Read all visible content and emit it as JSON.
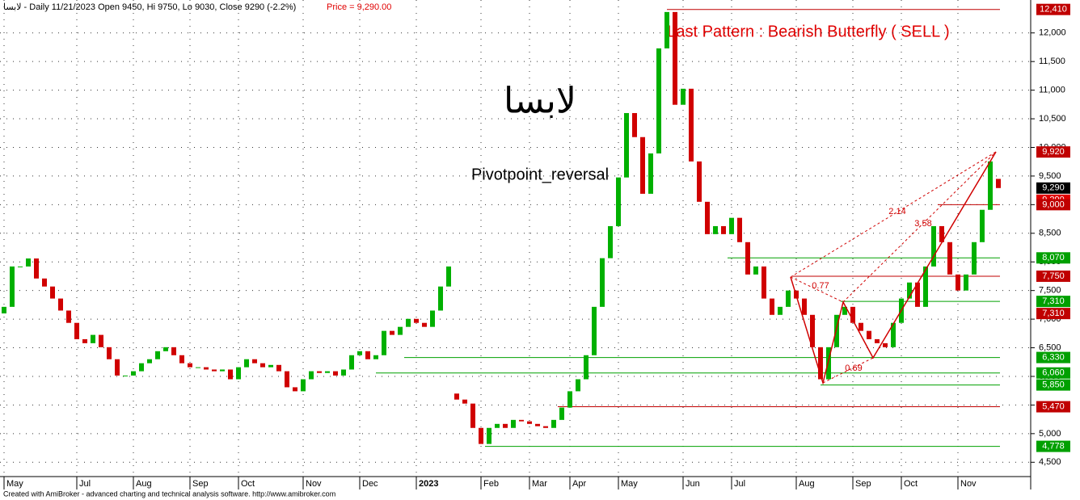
{
  "chart_data": {
    "type": "candlestick",
    "header": "لابسا - Daily 11/21/2023 Open 9450, Hi 9750, Lo 9030, Close 9290 (-2.2%)",
    "header_price": "Price = 9,290.00",
    "title": "لابسا",
    "subtitle": "Pivotpoint_reversal",
    "pattern_label": "Last Pattern : Bearish Butterfly ( SELL )",
    "footer": "Created with AmiBroker - advanced charting and technical analysis software. http://www.amibroker.com",
    "annotations": [
      "2.14",
      "3.58",
      "0.77",
      "0.69"
    ],
    "categories": [
      "May",
      null,
      null,
      null,
      null,
      null,
      null,
      null,
      null,
      "Jul",
      null,
      null,
      null,
      null,
      null,
      null,
      "Aug",
      null,
      null,
      null,
      null,
      null,
      null,
      "Sep",
      null,
      null,
      null,
      null,
      null,
      "Oct",
      null,
      null,
      null,
      null,
      null,
      null,
      null,
      "Nov",
      null,
      null,
      null,
      null,
      null,
      null,
      "Dec",
      null,
      null,
      null,
      null,
      null,
      null,
      "2023",
      null,
      null,
      null,
      null,
      null,
      null,
      null,
      "Feb",
      null,
      null,
      null,
      null,
      null,
      "Mar",
      null,
      null,
      null,
      null,
      "Apr",
      null,
      null,
      null,
      null,
      null,
      "May",
      null,
      null,
      null,
      null,
      null,
      null,
      null,
      "Jun",
      null,
      null,
      null,
      null,
      null,
      "Jul",
      null,
      null,
      null,
      null,
      null,
      null,
      null,
      "Aug",
      null,
      null,
      null,
      null,
      null,
      null,
      "Sep",
      null,
      null,
      null,
      null,
      null,
      "Oct",
      null,
      null,
      null,
      null,
      null,
      null,
      "Nov",
      null,
      null,
      null,
      null,
      null
    ],
    "open": [
      7100,
      7215,
      7920,
      7920,
      8060,
      7710,
      7570,
      7360,
      7150,
      6935,
      6650,
      6580,
      6725,
      6510,
      6300,
      6015,
      6015,
      6090,
      6230,
      6300,
      6440,
      6510,
      6370,
      6230,
      6160,
      6160,
      6120,
      6090,
      6120,
      5950,
      6160,
      6300,
      6230,
      6160,
      6200,
      6090,
      5810,
      5740,
      5950,
      6090,
      6060,
      6090,
      6015,
      6120,
      6370,
      6440,
      6300,
      6370,
      6795,
      6725,
      6865,
      7005,
      6935,
      6865,
      7150,
      7570,
      5700,
      5595,
      5525,
      5100,
      4820,
      5100,
      5170,
      5100,
      5240,
      5215,
      5170,
      5130,
      5100,
      5240,
      5455,
      5740,
      5950,
      6370,
      7215,
      8065,
      8625,
      9475,
      10600,
      10180,
      9190,
      9895,
      11730,
      12365,
      10745,
      11025,
      9755,
      9050,
      8485,
      8625,
      8485,
      8770,
      8345,
      7780,
      7920,
      7360,
      7075,
      7215,
      7500,
      7360,
      7075,
      6510,
      5950,
      6510,
      7075,
      7215,
      6935,
      6795,
      6650,
      6580,
      6510,
      6935,
      7360,
      7640,
      7215,
      7920,
      8625,
      8345,
      7780,
      7500,
      7780,
      8345,
      8910,
      9450
    ],
    "close": [
      7215,
      7920,
      7920,
      8060,
      7710,
      7570,
      7360,
      7150,
      6935,
      6650,
      6580,
      6725,
      6510,
      6300,
      6015,
      6015,
      6090,
      6230,
      6300,
      6440,
      6510,
      6370,
      6230,
      6160,
      6160,
      6120,
      6090,
      6120,
      5950,
      6160,
      6300,
      6230,
      6160,
      6200,
      6090,
      5810,
      5740,
      5950,
      6090,
      6060,
      6090,
      6015,
      6120,
      6370,
      6440,
      6300,
      6370,
      6795,
      6725,
      6865,
      7005,
      6935,
      6865,
      7150,
      7570,
      7920,
      5595,
      5525,
      5100,
      4820,
      5100,
      5170,
      5100,
      5240,
      5215,
      5170,
      5130,
      5100,
      5240,
      5455,
      5740,
      5950,
      6370,
      7215,
      8065,
      8625,
      9475,
      10600,
      10180,
      9190,
      9895,
      11730,
      12365,
      10745,
      11025,
      9755,
      9050,
      8485,
      8625,
      8485,
      8770,
      8345,
      7780,
      7920,
      7360,
      7075,
      7215,
      7500,
      7360,
      7075,
      6510,
      5950,
      6510,
      7075,
      7215,
      6935,
      6795,
      6650,
      6580,
      6510,
      6935,
      7360,
      7640,
      7215,
      7920,
      8625,
      8345,
      7780,
      7500,
      7780,
      8345,
      8910,
      9755,
      9290
    ],
    "up_color": "#00b000",
    "down_color": "#d00000",
    "ylim": [
      4250,
      12575
    ],
    "yticks": [
      {
        "value": 4500,
        "label": "4,500"
      },
      {
        "value": 5000,
        "label": "5,000"
      },
      {
        "value": 5500,
        "label": "5,500"
      },
      {
        "value": 6000,
        "label": "6,000"
      },
      {
        "value": 6500,
        "label": "6,500"
      },
      {
        "value": 7000,
        "label": "7,000"
      },
      {
        "value": 7500,
        "label": "7,500"
      },
      {
        "value": 8000,
        "label": "8,000"
      },
      {
        "value": 8500,
        "label": "8,500"
      },
      {
        "value": 9000,
        "label": "9,000"
      },
      {
        "value": 9500,
        "label": "9,500"
      },
      {
        "value": 10000,
        "label": "10,000"
      },
      {
        "value": 10500,
        "label": "10,500"
      },
      {
        "value": 11000,
        "label": "11,000"
      },
      {
        "value": 11500,
        "label": "11,500"
      },
      {
        "value": 12000,
        "label": "12,000"
      }
    ],
    "grid": true,
    "levels": [
      {
        "value": 12410,
        "label": "12,410",
        "color": "#c00000"
      },
      {
        "value": 9920,
        "label": "9,920",
        "color": "#c00000"
      },
      {
        "value": 9290,
        "label": "9,290",
        "color": "#000000"
      },
      {
        "value": 9290,
        "label": "9,290",
        "color": "#e00000"
      },
      {
        "value": 9000,
        "label": "9,000",
        "color": "#c00000"
      },
      {
        "value": 8070,
        "label": "8,070",
        "color": "#00a000"
      },
      {
        "value": 7750,
        "label": "7,750",
        "color": "#c00000"
      },
      {
        "value": 7310,
        "label": "7,310",
        "color": "#00a000"
      },
      {
        "value": 7310,
        "label": "7,310",
        "color": "#c00000"
      },
      {
        "value": 6330,
        "label": "6,330",
        "color": "#00a000"
      },
      {
        "value": 6060,
        "label": "6,060",
        "color": "#00a000"
      },
      {
        "value": 5850,
        "label": "5,850",
        "color": "#00a000"
      },
      {
        "value": 5470,
        "label": "5,470",
        "color": "#c00000"
      },
      {
        "value": 4778,
        "label": "4,778",
        "color": "#00a000"
      }
    ]
  }
}
